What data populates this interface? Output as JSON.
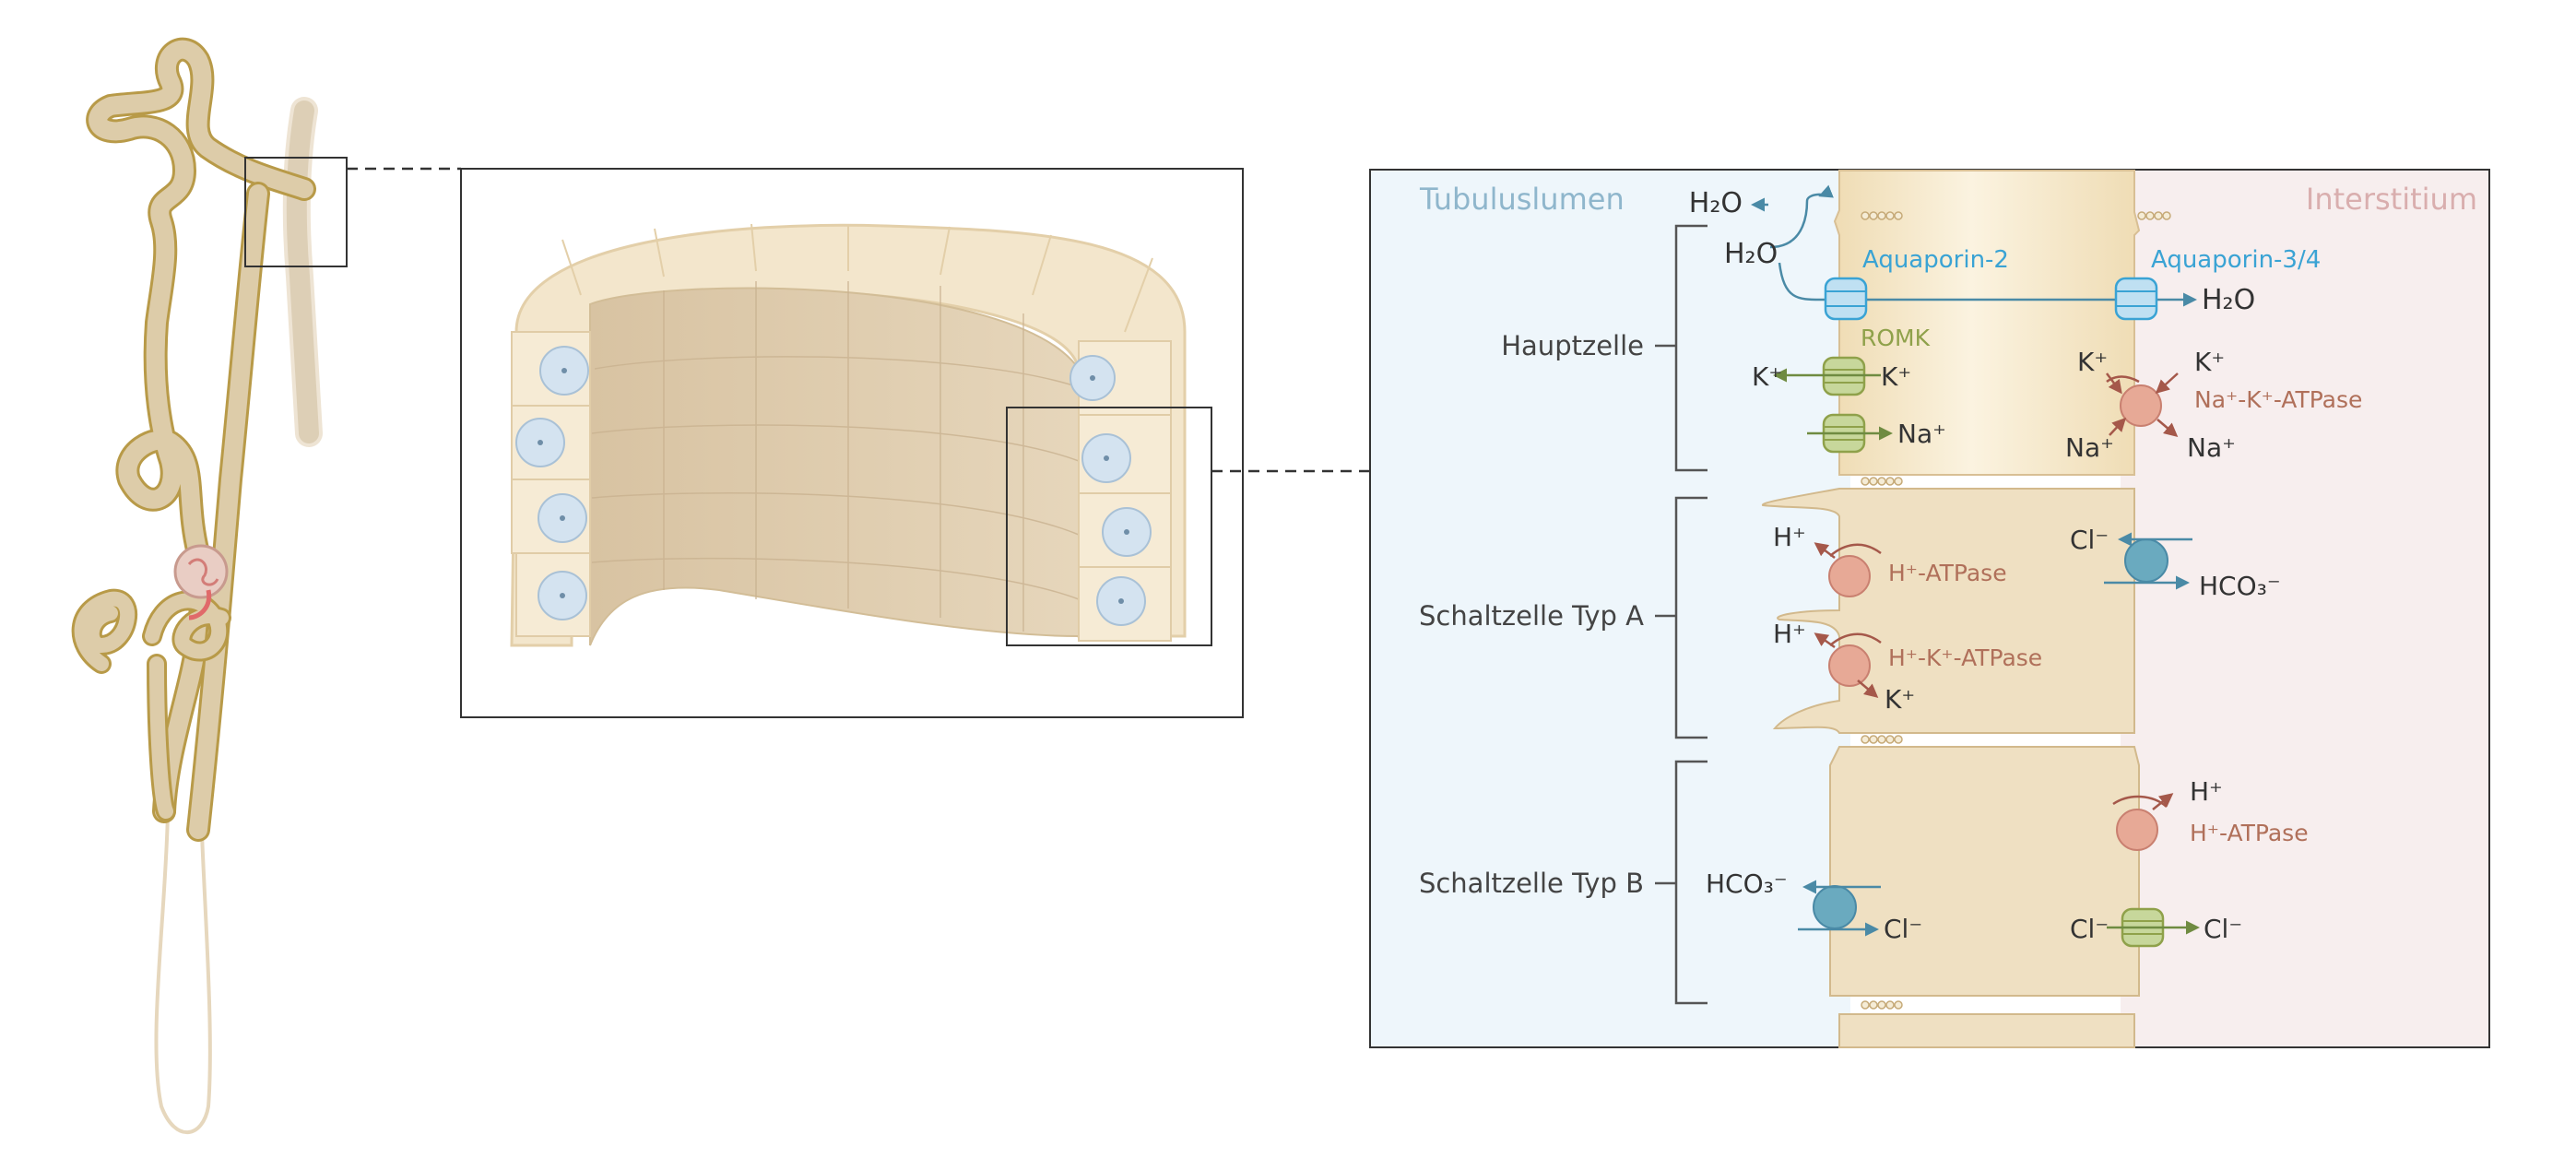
{
  "regions": {
    "lumen": "Tubuluslumen",
    "interstitium": "Interstitium"
  },
  "cells": {
    "principal": "Hauptzelle",
    "intercalated_a": "Schaltzelle Typ A",
    "intercalated_b": "Schaltzelle Typ B"
  },
  "labels": {
    "aquaporin2": "Aquaporin-2",
    "aquaporin34": "Aquaporin-3/4",
    "romk": "ROMK",
    "na_k_atpase": "Na⁺-K⁺-ATPase",
    "h_atpase": "H⁺-ATPase",
    "h_k_atpase": "H⁺-K⁺-ATPase"
  },
  "ions": {
    "h2o_a": "H₂O",
    "h2o_b": "H₂O",
    "h2o_c": "H₂O",
    "k_lumen": "K⁺",
    "k_cell": "K⁺",
    "na_cell": "Na⁺",
    "k_baso_in": "K⁺",
    "k_baso_out": "K⁺",
    "na_baso_in": "Na⁺",
    "na_baso_out": "Na⁺",
    "h_a1": "H⁺",
    "h_a2": "H⁺",
    "k_a": "K⁺",
    "cl_a": "Cl⁻",
    "hco3_a": "HCO₃⁻",
    "h_b": "H⁺",
    "hco3_b": "HCO₃⁻",
    "cl_b_apical": "Cl⁻",
    "cl_b_baso_in": "Cl⁻",
    "cl_b_baso_out": "Cl⁻"
  },
  "colors": {
    "lumen_bg": "#eef6fb",
    "interstitium_bg": "#f7eeee",
    "cell_fill": "#efe0c2",
    "cell_stroke": "#cdb78c",
    "tubule": "#dccbaa",
    "tubule_stroke": "#c8a94a",
    "lumen_title": "#8fb6cc",
    "interstitium_title": "#d9aeae",
    "aquaporin": "#3aa3d4",
    "romk": "#8fa14a",
    "pump_text": "#b0705a",
    "pump_fill": "#e7a996",
    "exchanger_fill": "#6aaabf",
    "channel_fill": "#c7d79b",
    "arrow_blue": "#4a8aa6",
    "arrow_red": "#a5584a",
    "arrow_green": "#6f8b41"
  }
}
